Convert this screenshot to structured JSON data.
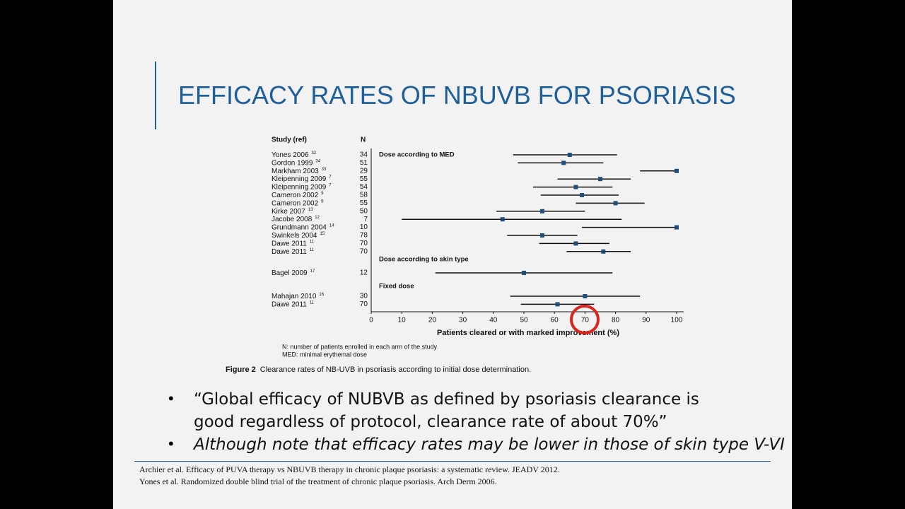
{
  "slide": {
    "title": "EFFICACY RATES OF NBUVB FOR PSORIASIS",
    "bullets": [
      "“Global efficacy of NUBVB as defined by psoriasis clearance is good regardless of protocol, clearance rate of about 70%”",
      "Although note that efficacy rates may be lower in those of skin type V-VI"
    ],
    "references": [
      "Archier et al. Efficacy of PUVA therapy vs NBUVB therapy in chronic plaque psoriasis: a systematic review. JEADV 2012.",
      "Yones et al. Randomized double blind trial of the treatment of chronic plaque psoriasis. Arch Derm 2006."
    ]
  },
  "chart_data": {
    "type": "forest",
    "study_header": "Study (ref)",
    "n_header": "N",
    "xlabel": "Patients cleared or with marked improvement (%)",
    "xlim": [
      0,
      100
    ],
    "xticks": [
      0,
      10,
      20,
      30,
      40,
      50,
      60,
      70,
      80,
      90,
      100
    ],
    "color": "#1f4e79",
    "groups": [
      {
        "label": "Dose according to MED",
        "studies": [
          {
            "study": "Yones 2006",
            "ref": 32,
            "n": 34,
            "value": 65,
            "low": 46.5,
            "high": 80.5
          },
          {
            "study": "Gordon 1999",
            "ref": 34,
            "n": 51,
            "value": 63,
            "low": 48,
            "high": 76
          },
          {
            "study": "Markham 2003",
            "ref": 33,
            "n": 29,
            "value": 100,
            "low": 88,
            "high": 100
          },
          {
            "study": "Kleipenning 2009",
            "ref": 7,
            "n": 55,
            "value": 75,
            "low": 61,
            "high": 85
          },
          {
            "study": "Kleipenning 2009",
            "ref": 7,
            "n": 54,
            "value": 67,
            "low": 53,
            "high": 79
          },
          {
            "study": "Cameron 2002",
            "ref": 9,
            "n": 58,
            "value": 69,
            "low": 55.5,
            "high": 81
          },
          {
            "study": "Cameron 2002",
            "ref": 9,
            "n": 55,
            "value": 80,
            "low": 67,
            "high": 89.5
          },
          {
            "study": "Kirke 2007",
            "ref": 13,
            "n": 50,
            "value": 56,
            "low": 41,
            "high": 70
          },
          {
            "study": "Jacobe 2008",
            "ref": 12,
            "n": 7,
            "value": 43,
            "low": 10,
            "high": 82
          },
          {
            "study": "Grundmann 2004",
            "ref": 14,
            "n": 10,
            "value": 100,
            "low": 69,
            "high": 100
          },
          {
            "study": "Swinkels 2004",
            "ref": 15,
            "n": 78,
            "value": 56,
            "low": 44.5,
            "high": 67.5
          },
          {
            "study": "Dawe 2011",
            "ref": 11,
            "n": 70,
            "value": 67,
            "low": 55,
            "high": 78
          },
          {
            "study": "Dawe 2011",
            "ref": 11,
            "n": 70,
            "value": 76,
            "low": 64,
            "high": 85
          }
        ]
      },
      {
        "label": "Dose according to skin type",
        "studies": [
          {
            "study": "Bagel 2009",
            "ref": 17,
            "n": 12,
            "value": 50,
            "low": 21,
            "high": 79
          }
        ]
      },
      {
        "label": "Fixed dose",
        "studies": [
          {
            "study": "Mahajan 2010",
            "ref": 16,
            "n": 30,
            "value": 70,
            "low": 45.5,
            "high": 88
          },
          {
            "study": "Dawe 2011",
            "ref": 11,
            "n": 70,
            "value": 61,
            "low": 49,
            "high": 73
          }
        ]
      }
    ],
    "notes": [
      "N: number of patients enrolled in each arm of the study",
      "MED: minimal erythemal dose"
    ],
    "caption_label": "Figure 2",
    "caption": "Clearance rates of NB-UVB in psoriasis according to initial dose determination."
  }
}
